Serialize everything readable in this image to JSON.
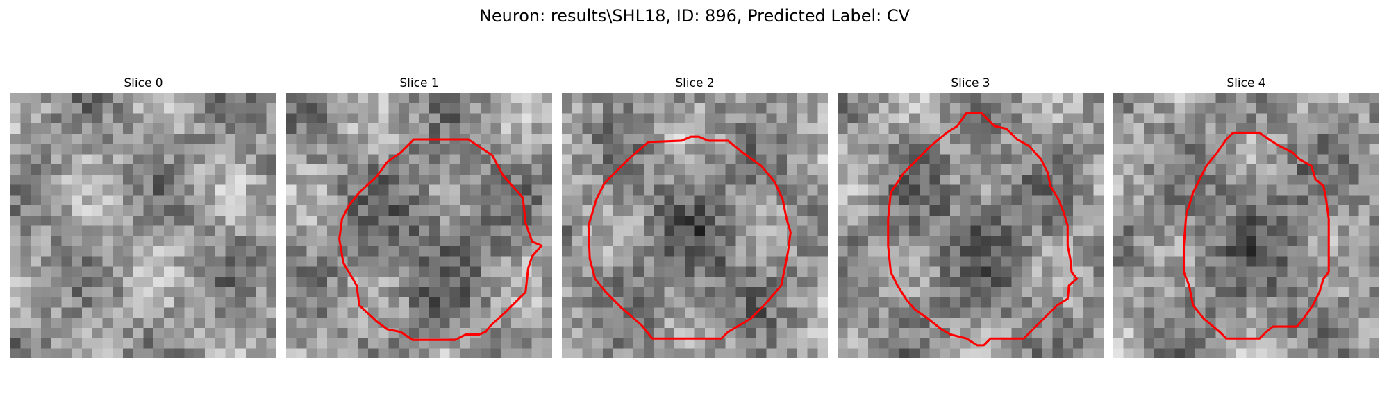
{
  "figure": {
    "title": "Neuron: results\\SHL18, ID: 896, Predicted Label: CV"
  },
  "panels": [
    {
      "title": "Slice 0",
      "contour": null,
      "seed": 11,
      "dark_center": false
    },
    {
      "title": "Slice 1",
      "contour": [
        [
          13.7,
          3.5
        ],
        [
          15.5,
          4.7
        ],
        [
          16.3,
          6.2
        ],
        [
          17.8,
          7.9
        ],
        [
          18.0,
          9.8
        ],
        [
          18.5,
          11.2
        ],
        [
          19.2,
          11.5
        ],
        [
          18.5,
          12.3
        ],
        [
          18.2,
          13.2
        ],
        [
          18.0,
          15.0
        ],
        [
          16.5,
          16.5
        ],
        [
          15.4,
          17.5
        ],
        [
          15.0,
          18.0
        ],
        [
          14.5,
          18.2
        ],
        [
          13.5,
          18.2
        ],
        [
          12.7,
          18.6
        ],
        [
          9.5,
          18.6
        ],
        [
          8.6,
          18.0
        ],
        [
          7.6,
          17.8
        ],
        [
          6.8,
          17.2
        ],
        [
          5.5,
          16.0
        ],
        [
          5.3,
          14.5
        ],
        [
          4.3,
          12.8
        ],
        [
          4.0,
          11.0
        ],
        [
          4.2,
          9.5
        ],
        [
          4.7,
          8.5
        ],
        [
          5.5,
          7.5
        ],
        [
          6.8,
          6.3
        ],
        [
          7.6,
          5.2
        ],
        [
          8.6,
          4.5
        ],
        [
          9.6,
          3.5
        ]
      ],
      "seed": 23,
      "dark_center": true
    },
    {
      "title": "Slice 2",
      "contour": [
        [
          9.7,
          3.3
        ],
        [
          10.3,
          3.3
        ],
        [
          11.0,
          3.6
        ],
        [
          12.5,
          3.6
        ],
        [
          13.6,
          4.5
        ],
        [
          15.0,
          5.5
        ],
        [
          16.0,
          6.7
        ],
        [
          16.6,
          8.0
        ],
        [
          16.9,
          9.5
        ],
        [
          17.2,
          10.5
        ],
        [
          17.0,
          12.0
        ],
        [
          16.7,
          13.5
        ],
        [
          16.5,
          14.5
        ],
        [
          15.2,
          16.0
        ],
        [
          14.2,
          17.0
        ],
        [
          12.5,
          18.0
        ],
        [
          12.0,
          18.5
        ],
        [
          6.8,
          18.5
        ],
        [
          6.0,
          17.5
        ],
        [
          4.5,
          16.2
        ],
        [
          3.3,
          15.0
        ],
        [
          2.5,
          14.0
        ],
        [
          2.1,
          12.5
        ],
        [
          2.0,
          10.0
        ],
        [
          2.3,
          9.0
        ],
        [
          2.6,
          8.0
        ],
        [
          3.2,
          6.8
        ],
        [
          4.0,
          6.0
        ],
        [
          5.0,
          5.0
        ],
        [
          6.5,
          3.7
        ],
        [
          9.0,
          3.6
        ]
      ],
      "seed": 37,
      "dark_center": true
    },
    {
      "title": "Slice 3",
      "contour": [
        [
          9.7,
          1.5
        ],
        [
          10.8,
          1.5
        ],
        [
          11.3,
          2.0
        ],
        [
          11.8,
          2.5
        ],
        [
          12.7,
          2.7
        ],
        [
          13.5,
          3.5
        ],
        [
          14.4,
          4.0
        ],
        [
          15.3,
          5.0
        ],
        [
          15.8,
          6.0
        ],
        [
          16.0,
          7.0
        ],
        [
          16.6,
          8.0
        ],
        [
          17.0,
          9.0
        ],
        [
          17.3,
          10.0
        ],
        [
          17.3,
          11.5
        ],
        [
          17.5,
          12.5
        ],
        [
          17.6,
          13.5
        ],
        [
          18.0,
          14.0
        ],
        [
          17.4,
          14.5
        ],
        [
          17.3,
          15.5
        ],
        [
          16.5,
          16.0
        ],
        [
          15.5,
          17.0
        ],
        [
          14.5,
          18.0
        ],
        [
          14.0,
          18.5
        ],
        [
          11.5,
          18.5
        ],
        [
          11.0,
          19.0
        ],
        [
          10.5,
          19.0
        ],
        [
          9.7,
          18.5
        ],
        [
          8.5,
          18.2
        ],
        [
          7.8,
          17.8
        ],
        [
          6.8,
          17.0
        ],
        [
          5.8,
          16.3
        ],
        [
          5.2,
          15.6
        ],
        [
          4.5,
          14.5
        ],
        [
          4.0,
          13.5
        ],
        [
          3.8,
          11.5
        ],
        [
          3.8,
          9.5
        ],
        [
          4.0,
          7.5
        ],
        [
          5.0,
          6.0
        ],
        [
          6.0,
          5.0
        ],
        [
          7.0,
          4.0
        ],
        [
          8.2,
          3.0
        ],
        [
          9.0,
          2.5
        ]
      ],
      "seed": 52,
      "dark_center": true
    },
    {
      "title": "Slice 4",
      "contour": [
        [
          10.0,
          3.0
        ],
        [
          11.0,
          3.0
        ],
        [
          11.7,
          3.5
        ],
        [
          12.5,
          4.0
        ],
        [
          13.5,
          4.5
        ],
        [
          14.0,
          5.0
        ],
        [
          14.9,
          5.5
        ],
        [
          15.2,
          6.5
        ],
        [
          15.8,
          7.0
        ],
        [
          16.0,
          8.0
        ],
        [
          16.2,
          9.5
        ],
        [
          16.2,
          11.5
        ],
        [
          16.2,
          13.5
        ],
        [
          15.8,
          14.0
        ],
        [
          15.5,
          15.0
        ],
        [
          15.0,
          16.0
        ],
        [
          14.3,
          17.0
        ],
        [
          13.8,
          17.6
        ],
        [
          12.0,
          17.6
        ],
        [
          11.5,
          18.0
        ],
        [
          11.0,
          18.5
        ],
        [
          8.5,
          18.5
        ],
        [
          8.0,
          18.0
        ],
        [
          6.8,
          17.0
        ],
        [
          6.0,
          16.0
        ],
        [
          5.8,
          15.0
        ],
        [
          5.7,
          14.5
        ],
        [
          5.3,
          13.5
        ],
        [
          5.3,
          11.5
        ],
        [
          5.5,
          9.0
        ],
        [
          5.7,
          8.5
        ],
        [
          6.0,
          7.5
        ],
        [
          6.5,
          6.5
        ],
        [
          7.0,
          5.5
        ],
        [
          7.8,
          4.5
        ],
        [
          8.5,
          3.5
        ],
        [
          9.0,
          3.0
        ]
      ],
      "seed": 71,
      "dark_center": true
    }
  ],
  "colors": {
    "contour": "#ff0000",
    "background": "#ffffff"
  }
}
